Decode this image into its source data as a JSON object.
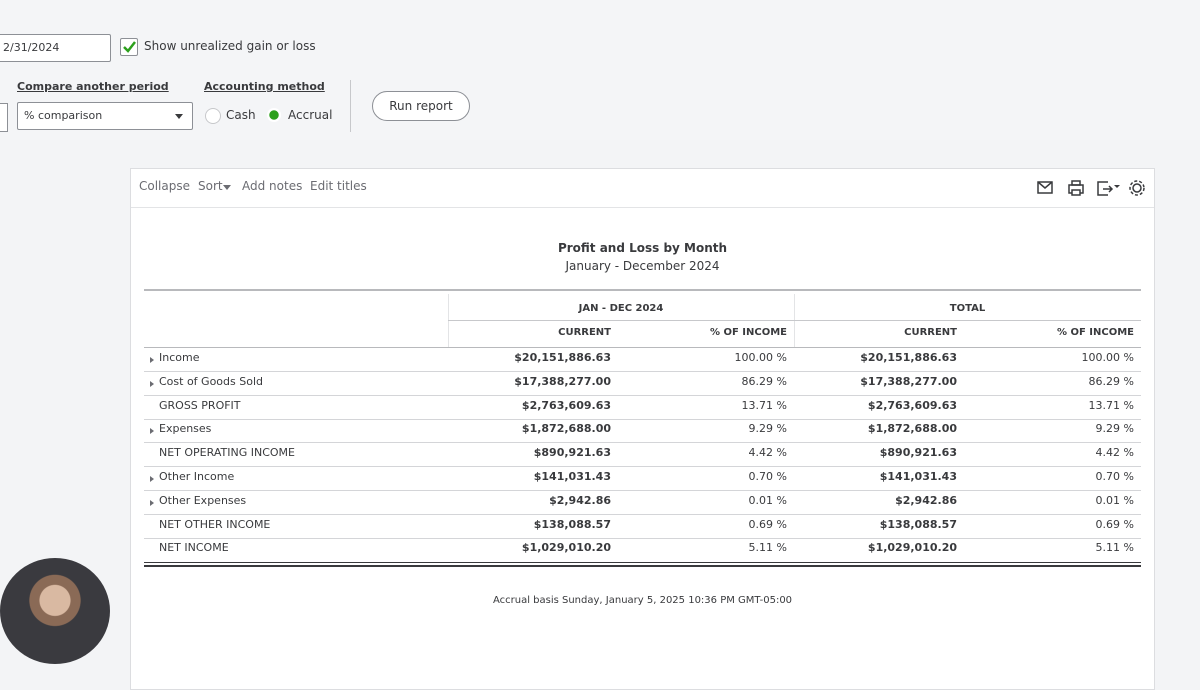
{
  "toolbar": {
    "date": "2/31/2024",
    "unrealized_label": "Show unrealized gain or loss",
    "unrealized_checked": true,
    "compare_label": "Compare another period",
    "compare_value": "% comparison",
    "method_label": "Accounting method",
    "methods": [
      "Cash",
      "Accrual"
    ],
    "selected_method": 1,
    "run_label": "Run report"
  },
  "report_actions": [
    "Collapse",
    "Sort",
    "Add notes",
    "Edit titles"
  ],
  "report": {
    "title": "Profit and Loss by Month",
    "subtitle": "January - December 2024",
    "groups": [
      "JAN - DEC 2024",
      "TOTAL"
    ],
    "columns": [
      "CURRENT",
      "% OF INCOME",
      "CURRENT",
      "% OF INCOME"
    ],
    "rows": [
      {
        "label": "Income",
        "expandable": true,
        "values": [
          "$20,151,886.63",
          "100.00 %",
          "$20,151,886.63",
          "100.00 %"
        ]
      },
      {
        "label": "Cost of Goods Sold",
        "expandable": true,
        "values": [
          "$17,388,277.00",
          "86.29 %",
          "$17,388,277.00",
          "86.29 %"
        ]
      },
      {
        "label": "GROSS PROFIT",
        "expandable": false,
        "values": [
          "$2,763,609.63",
          "13.71 %",
          "$2,763,609.63",
          "13.71 %"
        ]
      },
      {
        "label": "Expenses",
        "expandable": true,
        "values": [
          "$1,872,688.00",
          "9.29 %",
          "$1,872,688.00",
          "9.29 %"
        ]
      },
      {
        "label": "NET OPERATING INCOME",
        "expandable": false,
        "values": [
          "$890,921.63",
          "4.42 %",
          "$890,921.63",
          "4.42 %"
        ]
      },
      {
        "label": "Other Income",
        "expandable": true,
        "values": [
          "$141,031.43",
          "0.70 %",
          "$141,031.43",
          "0.70 %"
        ]
      },
      {
        "label": "Other Expenses",
        "expandable": true,
        "values": [
          "$2,942.86",
          "0.01 %",
          "$2,942.86",
          "0.01 %"
        ]
      },
      {
        "label": "NET OTHER INCOME",
        "expandable": false,
        "values": [
          "$138,088.57",
          "0.69 %",
          "$138,088.57",
          "0.69 %"
        ]
      },
      {
        "label": "NET INCOME",
        "expandable": false,
        "values": [
          "$1,029,010.20",
          "5.11 %",
          "$1,029,010.20",
          "5.11 %"
        ]
      }
    ],
    "footer": "Accrual basis Sunday, January 5, 2025 10:36 PM GMT-05:00"
  }
}
